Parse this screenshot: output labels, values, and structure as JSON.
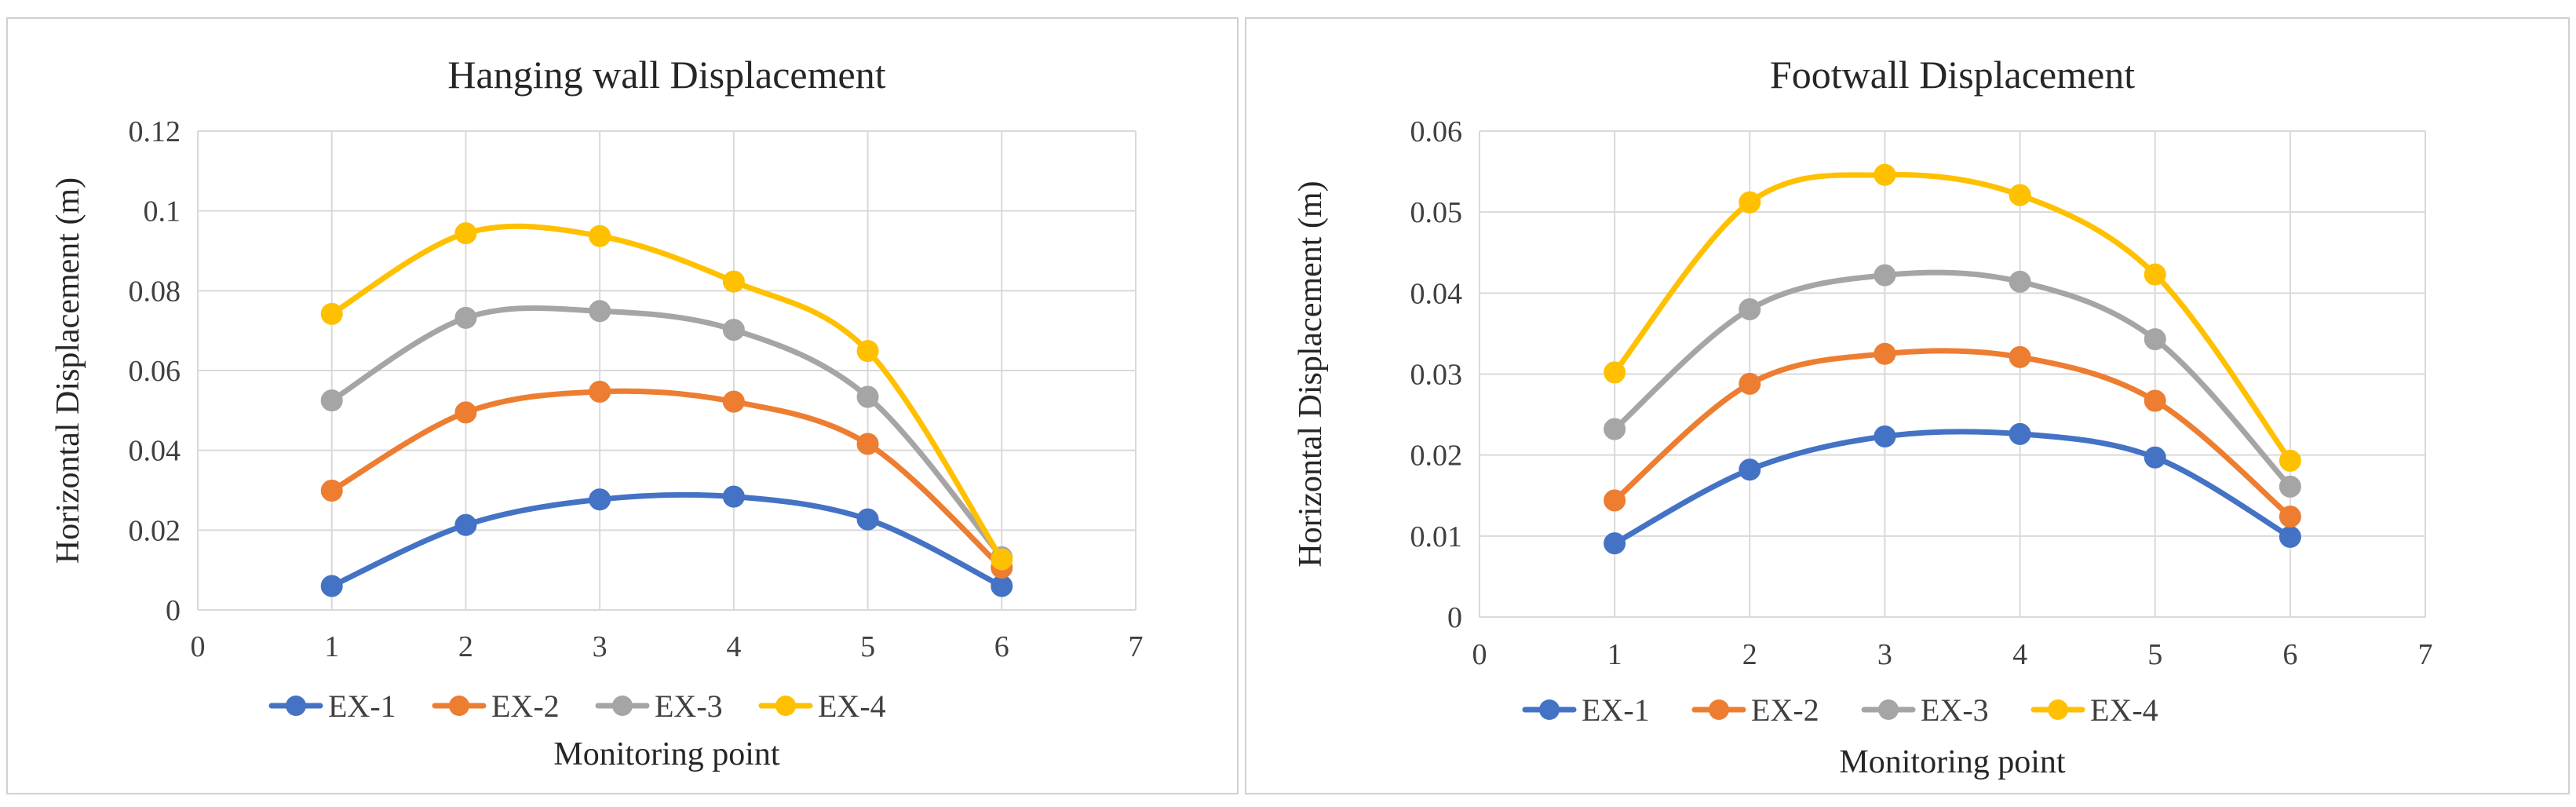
{
  "chart_data": [
    {
      "type": "line",
      "title": "Hanging wall Displacement",
      "xlabel": "Monitoring point",
      "ylabel": "Horizontal Displacement (m)",
      "xlim": [
        0,
        7
      ],
      "ylim": [
        0,
        0.12
      ],
      "xticks": [
        0,
        1,
        2,
        3,
        4,
        5,
        6,
        7
      ],
      "yticks": [
        0,
        0.02,
        0.04,
        0.06,
        0.08,
        0.1,
        0.12
      ],
      "x_tick_labels": [
        "0",
        "1",
        "2",
        "3",
        "4",
        "5",
        "6",
        "7"
      ],
      "y_tick_labels": [
        "0",
        "0.02",
        "0.04",
        "0.06",
        "0.08",
        "0.1",
        "0.12"
      ],
      "grid": true,
      "smooth": true,
      "legend_position": "bottom",
      "x": [
        1,
        2,
        3,
        4,
        5,
        6
      ],
      "series": [
        {
          "name": "EX-1",
          "color": "#4472C4",
          "values": [
            0.006,
            0.0213,
            0.0277,
            0.0284,
            0.0227,
            0.006
          ]
        },
        {
          "name": "EX-2",
          "color": "#ED7D31",
          "values": [
            0.0299,
            0.0495,
            0.0547,
            0.0522,
            0.0416,
            0.0106
          ]
        },
        {
          "name": "EX-3",
          "color": "#A5A5A5",
          "values": [
            0.0525,
            0.0732,
            0.0749,
            0.0702,
            0.0534,
            0.0132
          ]
        },
        {
          "name": "EX-4",
          "color": "#FFC000",
          "values": [
            0.0742,
            0.0944,
            0.0937,
            0.0823,
            0.0649,
            0.0127
          ]
        }
      ]
    },
    {
      "type": "line",
      "title": "Footwall Displacement",
      "xlabel": "Monitoring point",
      "ylabel": "Horizontal Displacement (m)",
      "xlim": [
        0,
        7
      ],
      "ylim": [
        0,
        0.06
      ],
      "xticks": [
        0,
        1,
        2,
        3,
        4,
        5,
        6,
        7
      ],
      "yticks": [
        0,
        0.01,
        0.02,
        0.03,
        0.04,
        0.05,
        0.06
      ],
      "x_tick_labels": [
        "0",
        "1",
        "2",
        "3",
        "4",
        "5",
        "6",
        "7"
      ],
      "y_tick_labels": [
        "0",
        "0.01",
        "0.02",
        "0.03",
        "0.04",
        "0.05",
        "0.06"
      ],
      "grid": true,
      "smooth": true,
      "legend_position": "bottom",
      "x": [
        1,
        2,
        3,
        4,
        5,
        6
      ],
      "series": [
        {
          "name": "EX-1",
          "color": "#4472C4",
          "values": [
            0.0091,
            0.0182,
            0.0223,
            0.0226,
            0.0197,
            0.0099
          ]
        },
        {
          "name": "EX-2",
          "color": "#ED7D31",
          "values": [
            0.0144,
            0.0288,
            0.0325,
            0.0321,
            0.0267,
            0.0124
          ]
        },
        {
          "name": "EX-3",
          "color": "#A5A5A5",
          "values": [
            0.0232,
            0.038,
            0.0422,
            0.0414,
            0.0343,
            0.0161
          ]
        },
        {
          "name": "EX-4",
          "color": "#FFC000",
          "values": [
            0.0302,
            0.0512,
            0.0546,
            0.0521,
            0.0423,
            0.0193
          ]
        }
      ]
    }
  ]
}
